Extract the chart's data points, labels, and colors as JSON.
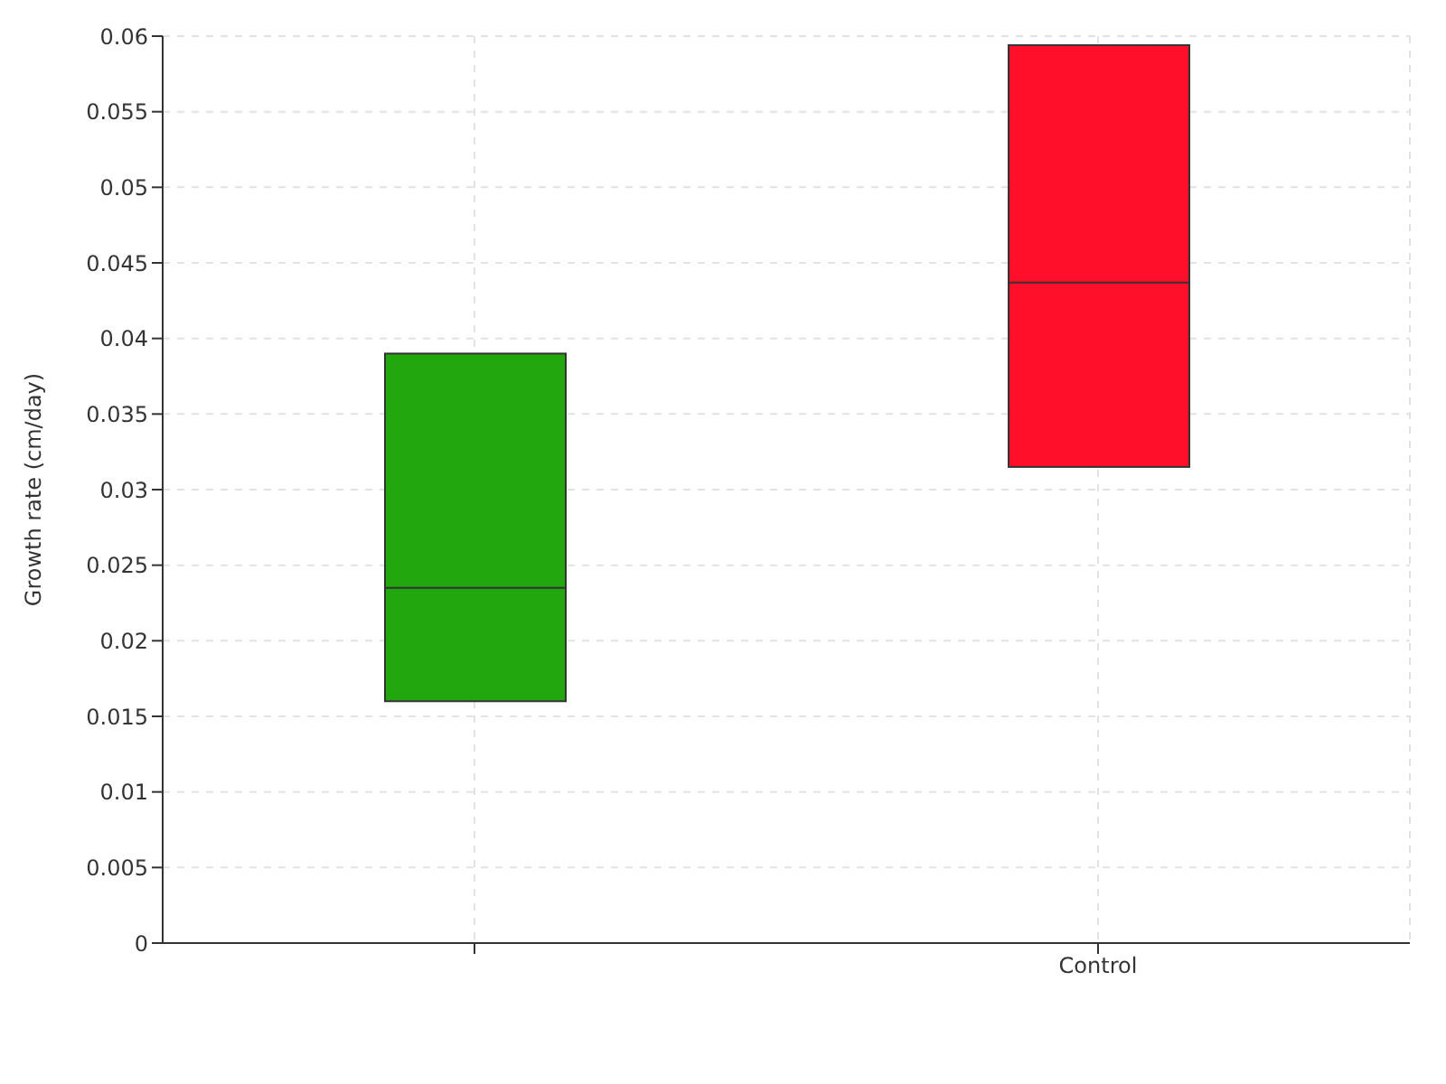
{
  "chart_data": {
    "type": "box",
    "ylabel": "Growth rate (cm/day)",
    "categories": [
      null,
      "Control"
    ],
    "boxes": [
      {
        "low": 0.016,
        "q1": 0.016,
        "median": 0.0235,
        "q3": 0.039,
        "high": 0.039
      },
      {
        "low": 0.0315,
        "q1": 0.0315,
        "median": 0.0437,
        "q3": 0.0594,
        "high": 0.0594
      }
    ],
    "colors": [
      "#22a70f",
      "#ff0f2a"
    ],
    "ylim": [
      0,
      0.06
    ],
    "yticks": [
      0,
      0.005,
      0.01,
      0.015,
      0.02,
      0.025,
      0.03,
      0.035,
      0.04,
      0.045,
      0.05,
      0.055,
      0.06
    ],
    "grid": true
  }
}
